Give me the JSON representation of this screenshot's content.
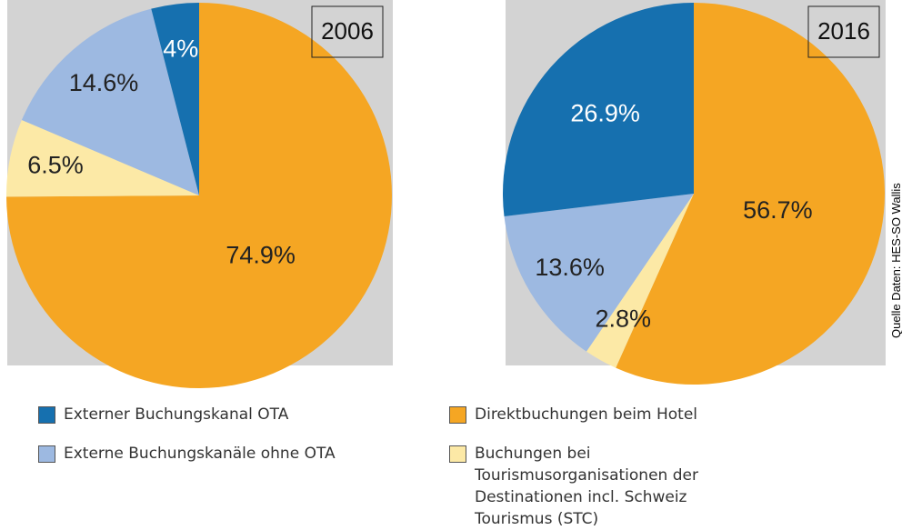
{
  "chart_data": [
    {
      "type": "pie",
      "title": "2006",
      "categories": [
        "Direktbuchungen beim Hotel",
        "Buchungen bei Tourismusorganisationen der Destinationen incl. Schweiz Tourismus (STC)",
        "Externe Buchungskanäle ohne OTA",
        "Externer Buchungskanal OTA"
      ],
      "values": [
        74.9,
        6.5,
        14.6,
        4
      ],
      "value_labels": [
        "74.9%",
        "6.5%",
        "14.6%",
        "4%"
      ],
      "colors": [
        "#f5a623",
        "#fce9a6",
        "#9db9e1",
        "#1670af"
      ]
    },
    {
      "type": "pie",
      "title": "2016",
      "categories": [
        "Direktbuchungen beim Hotel",
        "Buchungen bei Tourismusorganisationen der Destinationen incl. Schweiz Tourismus (STC)",
        "Externe Buchungskanäle ohne OTA",
        "Externer Buchungskanal OTA"
      ],
      "values": [
        56.7,
        2.8,
        13.6,
        26.9
      ],
      "value_labels": [
        "56.7%",
        "2.8%",
        "13.6%",
        "26.9%"
      ],
      "colors": [
        "#f5a623",
        "#fce9a6",
        "#9db9e1",
        "#1670af"
      ]
    }
  ],
  "source": "Quelle Daten: HES-SO Wallis"
}
